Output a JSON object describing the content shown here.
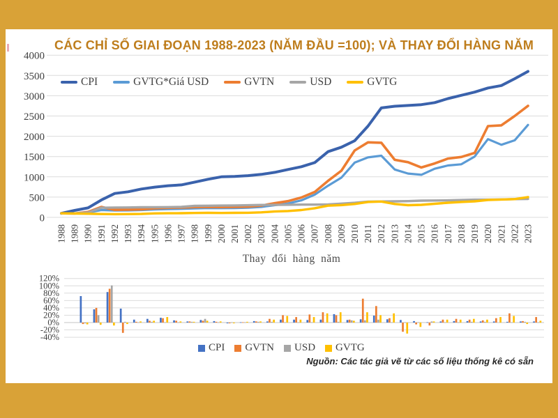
{
  "frame_color": "#D9A237",
  "panel_bg": "#FFFFFF",
  "title": {
    "text": "CÁC CHỈ SỐ GIAI ĐOẠN 1988-2023 (NĂM ĐẦU =100); VÀ THAY ĐỔI HÀNG NĂM",
    "color": "#BE7D1C"
  },
  "source_note": "Nguồn: Các tác giả vẽ từ các số liệu thống kê có sẵn",
  "colors": {
    "grid": "#DCDCDC",
    "zero_line": "#C6C6C6",
    "axis_text": "#3F3F3F"
  },
  "chart_data": [
    {
      "type": "line",
      "title": "",
      "x": [
        1988,
        1989,
        1990,
        1991,
        1992,
        1993,
        1994,
        1995,
        1996,
        1997,
        1998,
        1999,
        2000,
        2001,
        2002,
        2003,
        2004,
        2005,
        2006,
        2007,
        2008,
        2009,
        2010,
        2011,
        2012,
        2013,
        2014,
        2015,
        2016,
        2017,
        2018,
        2019,
        2020,
        2021,
        2022,
        2023
      ],
      "ylim": [
        0,
        4000
      ],
      "ytick_step": 500,
      "grid": true,
      "legend_position": "top",
      "series": [
        {
          "name": "CPI",
          "color": "#3A62AC",
          "width": 4,
          "values": [
            100,
            172,
            234,
            428,
            590,
            630,
            700,
            745,
            780,
            800,
            870,
            940,
            1000,
            1010,
            1030,
            1060,
            1110,
            1180,
            1250,
            1350,
            1620,
            1730,
            1890,
            2250,
            2700,
            2740,
            2760,
            2780,
            2830,
            2930,
            3010,
            3090,
            3190,
            3250,
            3420,
            3600
          ]
        },
        {
          "name": "GVTG*Giá USD",
          "color": "#5B9BD5",
          "width": 3.2,
          "values": [
            100,
            98,
            120,
            180,
            170,
            172,
            180,
            195,
            205,
            210,
            220,
            228,
            226,
            230,
            238,
            258,
            300,
            340,
            420,
            560,
            780,
            980,
            1350,
            1480,
            1520,
            1180,
            1080,
            1050,
            1200,
            1280,
            1310,
            1500,
            1930,
            1790,
            1900,
            2280
          ]
        },
        {
          "name": "GVTN",
          "color": "#ED7D31",
          "width": 3.6,
          "values": [
            100,
            96,
            134,
            258,
            186,
            190,
            200,
            224,
            235,
            242,
            254,
            259,
            254,
            257,
            264,
            290,
            348,
            400,
            490,
            625,
            900,
            1150,
            1650,
            1850,
            1840,
            1420,
            1360,
            1230,
            1330,
            1450,
            1490,
            1590,
            2250,
            2270,
            2500,
            2750
          ]
        },
        {
          "name": "USD",
          "color": "#A6A6A6",
          "width": 3.4,
          "values": [
            100,
            98,
            118,
            237,
            242,
            244,
            249,
            251,
            253,
            258,
            284,
            287,
            290,
            293,
            299,
            305,
            308,
            311,
            314,
            314,
            320,
            339,
            359,
            388,
            392,
            396,
            400,
            412,
            416,
            420,
            428,
            437,
            437,
            441,
            450,
            455
          ]
        },
        {
          "name": "GVTG",
          "color": "#FFC000",
          "width": 3.4,
          "values": [
            100,
            95,
            89,
            82,
            79,
            81,
            85,
            98,
            101,
            103,
            108,
            111,
            109,
            111,
            114,
            123,
            145,
            157,
            180,
            225,
            288,
            302,
            330,
            380,
            390,
            330,
            300,
            310,
            335,
            360,
            380,
            395,
            430,
            440,
            450,
            500
          ]
        }
      ]
    },
    {
      "type": "bar",
      "title": "Thay đổi hàng năm",
      "x": [
        1988,
        1989,
        1990,
        1991,
        1992,
        1993,
        1994,
        1995,
        1996,
        1997,
        1998,
        1999,
        2000,
        2001,
        2002,
        2003,
        2004,
        2005,
        2006,
        2007,
        2008,
        2009,
        2010,
        2011,
        2012,
        2013,
        2014,
        2015,
        2016,
        2017,
        2018,
        2019,
        2020,
        2021,
        2022,
        2023
      ],
      "ylim_pct": [
        -40,
        120
      ],
      "ytick_step_pct": 20,
      "grid": true,
      "legend_position": "bottom",
      "series": [
        {
          "name": "CPI",
          "color": "#4472C4",
          "values": [
            null,
            72,
            36,
            83,
            38,
            8,
            10,
            13,
            6,
            3,
            7,
            4,
            -2,
            1,
            4,
            3,
            8,
            8,
            7,
            8,
            23,
            7,
            9,
            19,
            9,
            7,
            4,
            1,
            3,
            4,
            4,
            3,
            3,
            2,
            3,
            3
          ]
        },
        {
          "name": "GVTN",
          "color": "#ED7D31",
          "values": [
            null,
            -4,
            40,
            92,
            -28,
            2,
            5,
            12,
            5,
            3,
            5,
            2,
            -2,
            1,
            3,
            10,
            20,
            15,
            22,
            28,
            20,
            8,
            65,
            45,
            12,
            -25,
            -5,
            -8,
            8,
            10,
            8,
            6,
            12,
            25,
            4,
            15
          ]
        },
        {
          "name": "USD",
          "color": "#A6A6A6",
          "values": [
            null,
            -2,
            20,
            101,
            2,
            1,
            2,
            1,
            1,
            2,
            10,
            1,
            1,
            1,
            2,
            2,
            1,
            1,
            1,
            0,
            2,
            6,
            6,
            8,
            1,
            1,
            1,
            3,
            1,
            1,
            2,
            2,
            0,
            1,
            2,
            1
          ]
        },
        {
          "name": "GVTG",
          "color": "#FFC000",
          "values": [
            null,
            -5,
            -6,
            -8,
            -4,
            3,
            5,
            15,
            3,
            2,
            5,
            3,
            -2,
            2,
            3,
            8,
            18,
            8,
            15,
            25,
            28,
            5,
            28,
            20,
            25,
            -30,
            -12,
            3,
            8,
            8,
            10,
            8,
            15,
            18,
            -4,
            5
          ]
        }
      ]
    }
  ]
}
